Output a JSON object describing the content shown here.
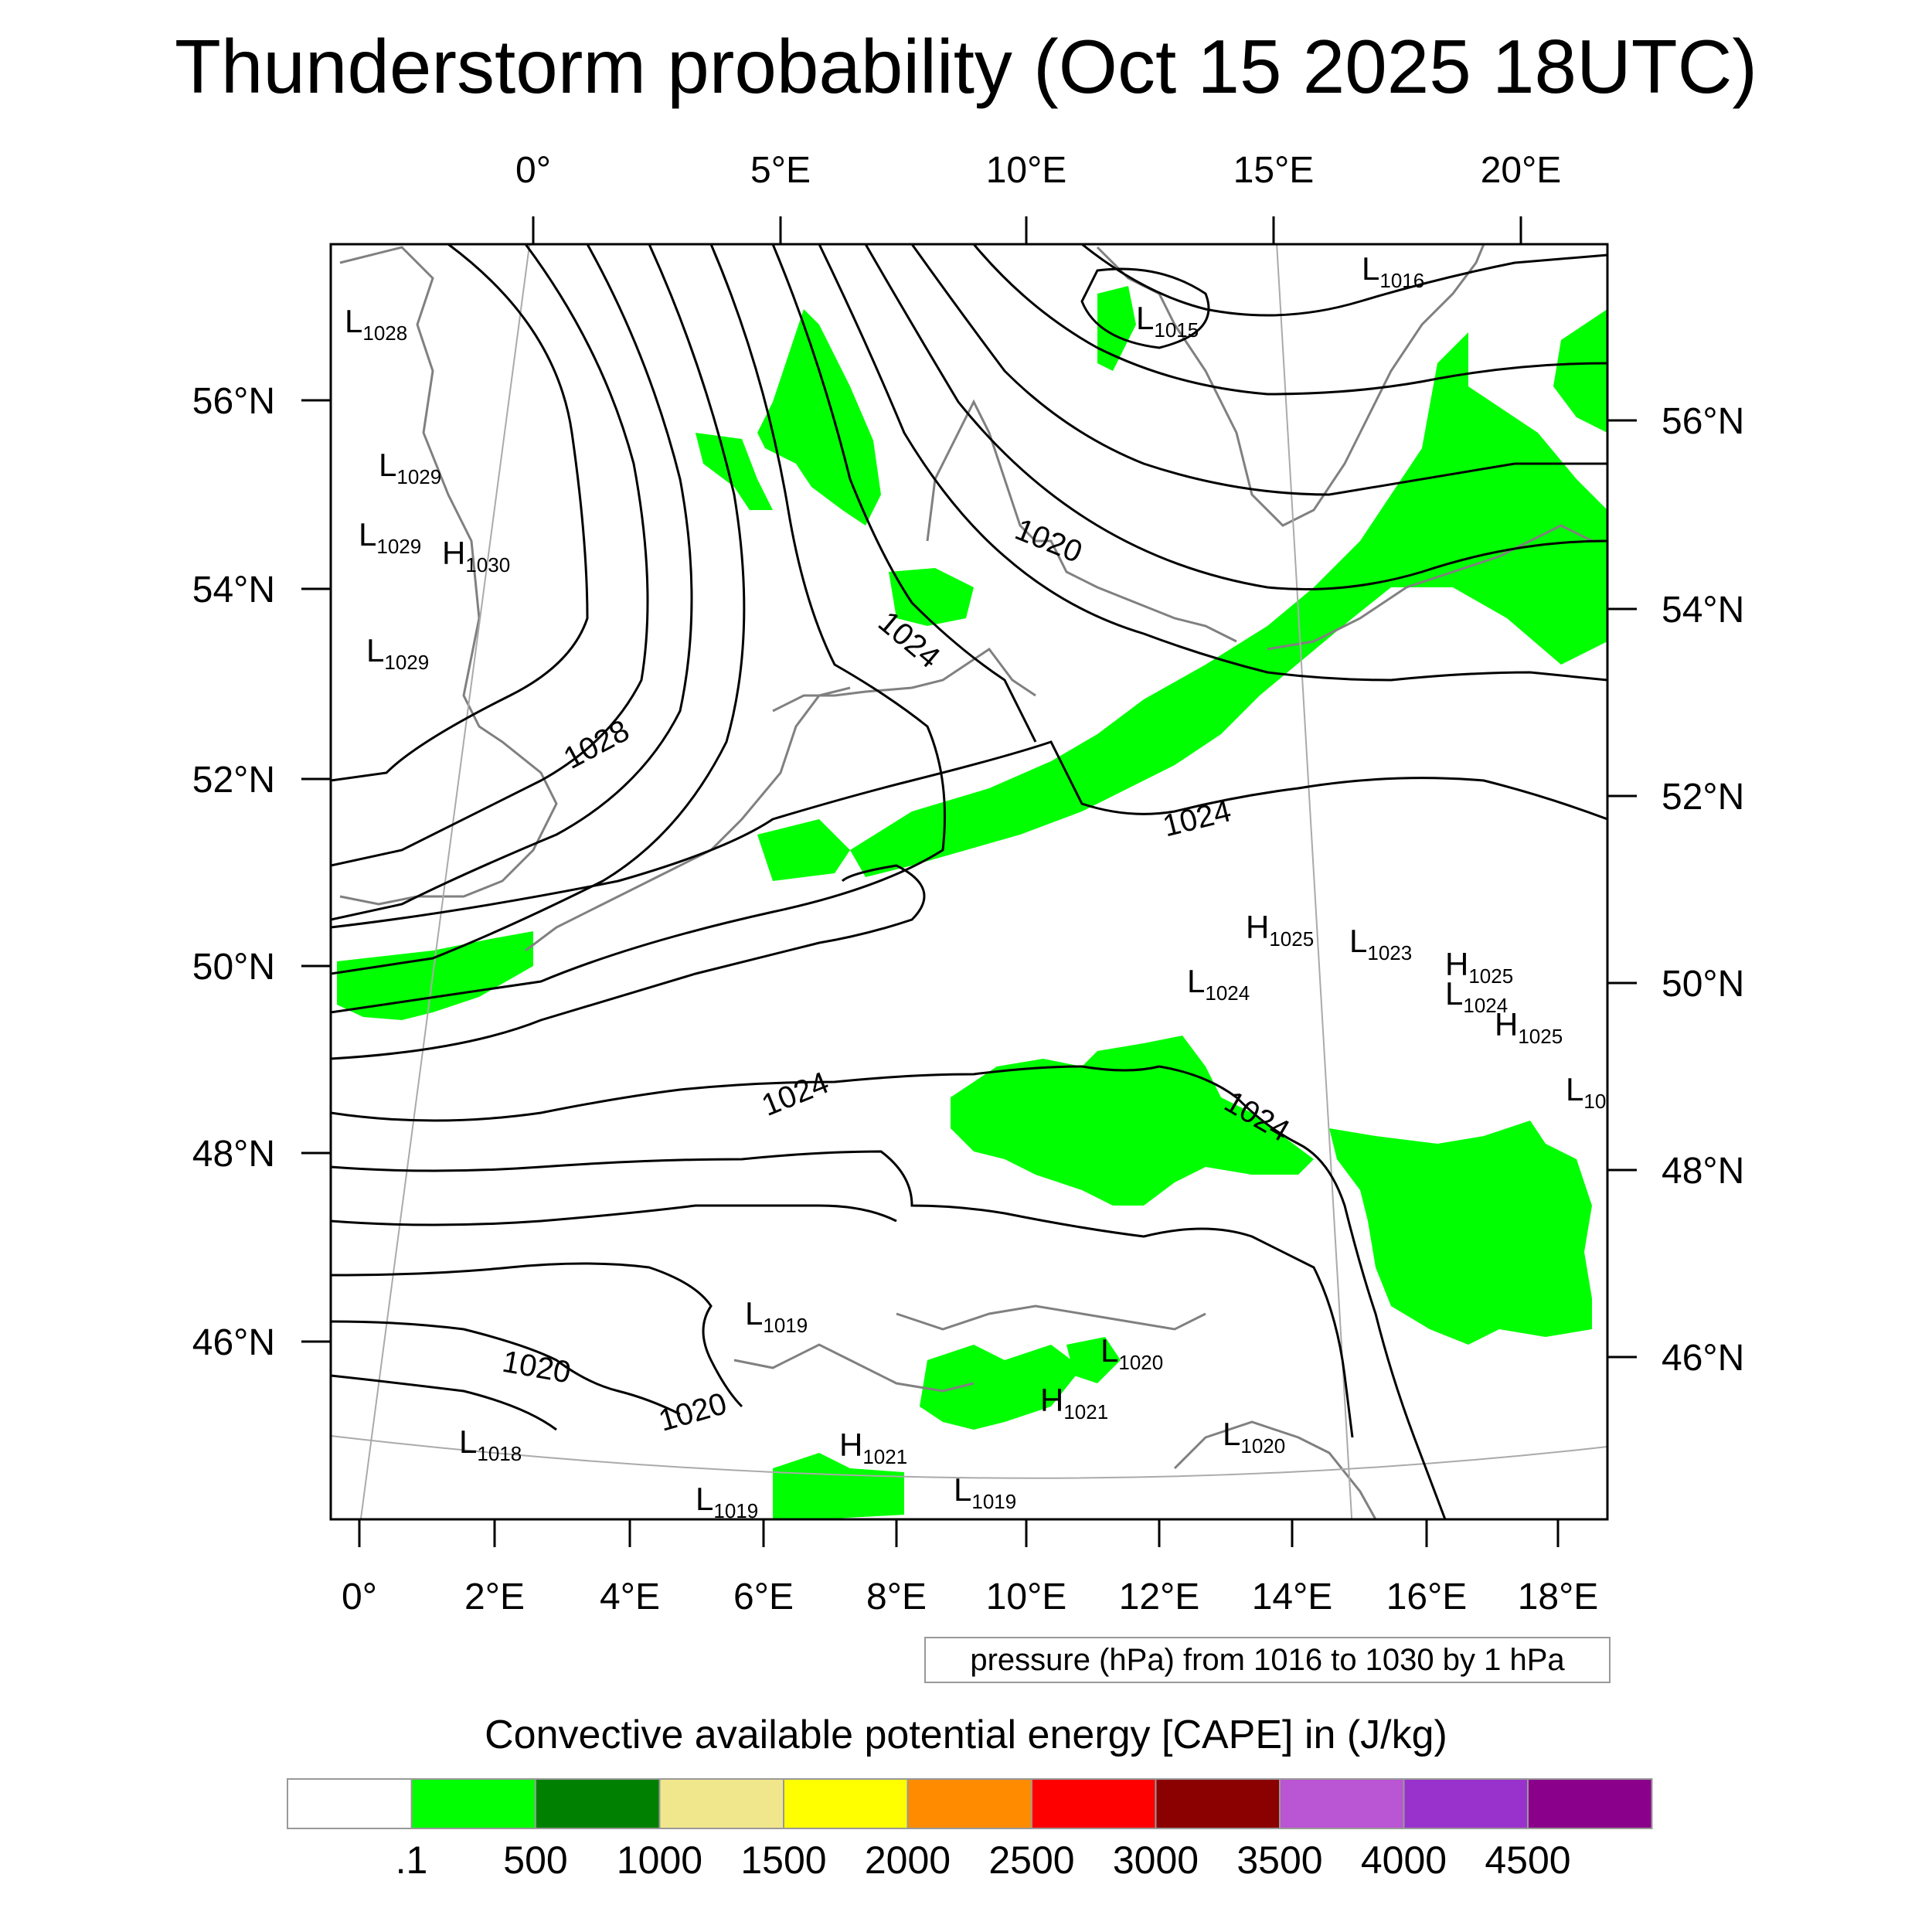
{
  "title": "Thunderstorm probability (Oct 15 2025 18UTC)",
  "axes": {
    "top_lon_labels": [
      "0°",
      "5°E",
      "10°E",
      "15°E",
      "20°E"
    ],
    "bottom_lon_labels": [
      "0°",
      "2°E",
      "4°E",
      "6°E",
      "8°E",
      "10°E",
      "12°E",
      "14°E",
      "16°E",
      "18°E"
    ],
    "left_lat_labels": [
      "56°N",
      "54°N",
      "52°N",
      "50°N",
      "48°N",
      "46°N"
    ],
    "right_lat_labels": [
      "56°N",
      "54°N",
      "52°N",
      "50°N",
      "48°N",
      "46°N"
    ]
  },
  "contour_labels": [
    "1020",
    "1024",
    "1028",
    "1024",
    "1024",
    "1024",
    "1020",
    "1020"
  ],
  "pressure_centers": [
    {
      "type": "L",
      "value": "1028"
    },
    {
      "type": "L",
      "value": "1029"
    },
    {
      "type": "L",
      "value": "1029"
    },
    {
      "type": "H",
      "value": "1030"
    },
    {
      "type": "L",
      "value": "1029"
    },
    {
      "type": "L",
      "value": "1015"
    },
    {
      "type": "L",
      "value": "1016"
    },
    {
      "type": "H",
      "value": "1025"
    },
    {
      "type": "L",
      "value": "1023"
    },
    {
      "type": "H",
      "value": "1025"
    },
    {
      "type": "L",
      "value": "1024"
    },
    {
      "type": "L",
      "value": "1024"
    },
    {
      "type": "H",
      "value": "1025"
    },
    {
      "type": "L",
      "value": "10"
    },
    {
      "type": "L",
      "value": "1019"
    },
    {
      "type": "L",
      "value": "1020"
    },
    {
      "type": "H",
      "value": "1021"
    },
    {
      "type": "L",
      "value": "1018"
    },
    {
      "type": "H",
      "value": "1021"
    },
    {
      "type": "L",
      "value": "1020"
    },
    {
      "type": "L",
      "value": "1019"
    },
    {
      "type": "L",
      "value": "1019"
    }
  ],
  "contour_info": "pressure (hPa) from 1016 to 1030 by 1 hPa",
  "colorbar": {
    "title": "Convective available potential energy [CAPE] in (J/kg)",
    "colors": [
      "#ffffff",
      "#00ff00",
      "#008000",
      "#f0e68c",
      "#ffff00",
      "#ff8c00",
      "#ff0000",
      "#8b0000",
      "#ba55d3",
      "#9932cc",
      "#8b008b"
    ],
    "labels": [
      ".1",
      "500",
      "1000",
      "1500",
      "2000",
      "2500",
      "3000",
      "3500",
      "4000",
      "4500"
    ]
  },
  "colors": {
    "cape_low": "#00ff00",
    "coast": "#808080",
    "isobar": "#000000",
    "grid": "#aaaaaa"
  }
}
